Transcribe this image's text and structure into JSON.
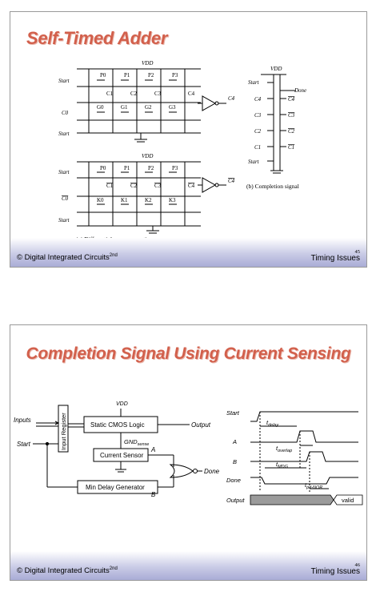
{
  "slide1": {
    "title": "Self-Timed Adder",
    "footer_left": "© Digital Integrated Circuits",
    "footer_sup": "2nd",
    "page": "45",
    "footer_right": "Timing Issues",
    "vdd_top": "VDD",
    "vdd_mid": "VDD",
    "vdd_right": "VDD",
    "start_labels": [
      "Start",
      "Start",
      "Start",
      "Start",
      "Start",
      "Start"
    ],
    "c0_label": "C0",
    "c0bar_label": "C0",
    "c4_out": "C4",
    "c4bar_out": "C4",
    "p_labels": [
      "P0",
      "P1",
      "P2",
      "P3"
    ],
    "g_labels": [
      "G0",
      "G1",
      "G2",
      "G3"
    ],
    "k_labels": [
      "K0",
      "K1",
      "K2",
      "K3"
    ],
    "carry_inner": [
      "C1",
      "C2",
      "C3",
      "C4"
    ],
    "done": "Done",
    "completion_inputs": [
      "C4",
      "C3",
      "C2",
      "C1"
    ],
    "completion_bars": [
      "C4",
      "C3",
      "C2",
      "C1"
    ],
    "caption_a": "(a) Differential carry generation",
    "caption_b": "(b) Completion signal"
  },
  "slide2": {
    "title": "Completion Signal Using Current Sensing",
    "footer_left": "© Digital Integrated Circuits",
    "footer_sup": "2nd",
    "page": "46",
    "footer_right": "Timing Issues",
    "inputs": "Inputs",
    "start": "Start",
    "input_register": "Input Register",
    "vdd": "VDD",
    "static_logic": "Static CMOS Logic",
    "output": "Output",
    "gnd_sense": "GND",
    "gnd_sub": "sense",
    "current_sensor": "Current Sensor",
    "min_delay": "Min Delay Generator",
    "a": "A",
    "b": "B",
    "done": "Done",
    "timing": {
      "rows": [
        "Start",
        "A",
        "B",
        "Done",
        "Output"
      ],
      "t_delay": "t",
      "t_delay_sub": "delay",
      "t_overlap": "t",
      "t_overlap_sub": "overlap",
      "t_mdg": "t",
      "t_mdg_sub": "MDG",
      "t_pdnor": "t",
      "t_pdnor_sub": "pd-NOR",
      "valid": "valid"
    }
  }
}
